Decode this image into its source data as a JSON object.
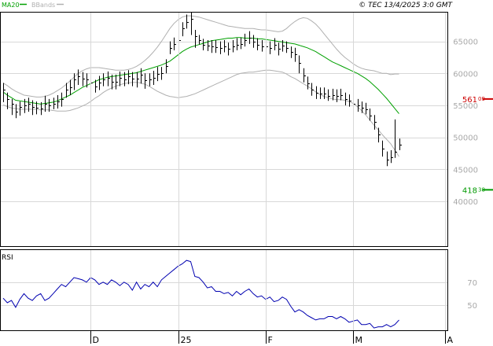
{
  "credit": "© TEC 13/4/2025 3:0 GMT",
  "colors": {
    "ma": "#00a000",
    "bands": "#b0b0b0",
    "rsi": "#0000b0",
    "price": "#000000",
    "resistance": "#cc0000",
    "support": "#009900",
    "grid": "#d8d8d8",
    "axis_text": "#a9a9a9",
    "frame": "#000000"
  },
  "chart_data": [
    {
      "type": "line",
      "panel": "price",
      "legend": [
        "MA20",
        "BBands"
      ],
      "ylim": [
        330,
        695
      ],
      "y_ticks": [
        "65000",
        "60000",
        "55000",
        "50000",
        "45000",
        "40000"
      ],
      "y_tick_values": [
        650,
        600,
        550,
        500,
        450,
        400
      ],
      "x_ticks": [
        "D",
        "25",
        "F",
        "M",
        "A"
      ],
      "x_tick_positions": [
        21,
        42,
        63,
        84,
        106
      ],
      "levels": [
        {
          "name": "resistance",
          "value": 560,
          "label_main": "561",
          "label_small": "09",
          "x_start": 115,
          "x_end": 126
        },
        {
          "name": "support",
          "value": 418,
          "label_main": "418",
          "label_small": "38",
          "x_start": 115,
          "x_end": 126
        }
      ],
      "series": [
        {
          "kind": "close",
          "values": [
            575,
            560,
            552,
            540,
            547,
            550,
            552,
            548,
            546,
            545,
            553,
            550,
            552,
            556,
            560,
            575,
            578,
            590,
            595,
            592,
            590,
            586,
            580,
            586,
            590,
            593,
            587,
            587,
            593,
            591,
            595,
            592,
            592,
            598,
            589,
            590,
            593,
            599,
            600,
            612,
            640,
            646,
            652,
            670,
            680,
            685,
            658,
            652,
            644,
            643,
            642,
            641,
            640,
            642,
            638,
            642,
            645,
            646,
            652,
            656,
            650,
            645,
            642,
            642,
            640,
            645,
            638,
            643,
            640,
            633,
            630,
            616,
            597,
            585,
            575,
            570,
            568,
            568,
            565,
            566,
            565,
            566,
            560,
            557,
            552,
            550,
            546,
            544,
            534,
            524,
            505,
            483,
            465,
            469,
            478,
            488
          ],
          "lows": [
            555,
            544,
            535,
            530,
            534,
            538,
            540,
            535,
            536,
            535,
            540,
            540,
            544,
            545,
            548,
            562,
            566,
            574,
            582,
            580,
            578,
            575,
            570,
            574,
            580,
            580,
            575,
            575,
            580,
            580,
            583,
            580,
            578,
            584,
            576,
            580,
            582,
            588,
            590,
            600,
            630,
            636,
            642,
            658,
            670,
            660,
            640,
            645,
            636,
            635,
            632,
            632,
            630,
            633,
            628,
            633,
            636,
            638,
            642,
            646,
            640,
            636,
            634,
            634,
            630,
            636,
            628,
            634,
            632,
            624,
            618,
            600,
            586,
            575,
            565,
            560,
            560,
            560,
            557,
            558,
            555,
            558,
            550,
            548,
            542,
            540,
            538,
            536,
            526,
            512,
            492,
            470,
            455,
            460,
            468,
            480
          ],
          "highs": [
            585,
            570,
            560,
            552,
            556,
            560,
            562,
            558,
            556,
            555,
            565,
            560,
            562,
            566,
            570,
            585,
            590,
            600,
            606,
            602,
            600,
            596,
            590,
            596,
            600,
            603,
            598,
            598,
            603,
            602,
            605,
            602,
            602,
            608,
            600,
            600,
            604,
            610,
            610,
            622,
            650,
            656,
            664,
            680,
            692,
            695,
            668,
            660,
            654,
            652,
            652,
            652,
            650,
            652,
            648,
            652,
            655,
            656,
            662,
            666,
            660,
            655,
            652,
            652,
            650,
            655,
            648,
            652,
            650,
            642,
            640,
            628,
            608,
            595,
            585,
            580,
            578,
            578,
            575,
            576,
            575,
            576,
            570,
            567,
            562,
            560,
            556,
            554,
            545,
            535,
            515,
            495,
            478,
            480,
            528,
            498
          ]
        },
        {
          "kind": "ma",
          "name": "MA20",
          "values": [
            571,
            566,
            562,
            558,
            557,
            556,
            555,
            554,
            553,
            552,
            553,
            554,
            555,
            557,
            560,
            563,
            566,
            570,
            574,
            578,
            581,
            584,
            587,
            590,
            592,
            594,
            595,
            596,
            597,
            598,
            599,
            600,
            601,
            603,
            605,
            607,
            609,
            611,
            613,
            616,
            619,
            624,
            629,
            634,
            638,
            641,
            643,
            645,
            647,
            649,
            651,
            652,
            653,
            654,
            655,
            655,
            656,
            656,
            655,
            655,
            655,
            654,
            654,
            653,
            652,
            651,
            650,
            649,
            648,
            647,
            646,
            644,
            642,
            640,
            637,
            634,
            630,
            626,
            622,
            618,
            615,
            612,
            609,
            606,
            603,
            600,
            596,
            592,
            587,
            581,
            575,
            568,
            561,
            553,
            545,
            537
          ]
        },
        {
          "kind": "bb_upper",
          "name": "BBands",
          "values": [
            585,
            581,
            576,
            572,
            569,
            566,
            565,
            564,
            563,
            563,
            564,
            566,
            569,
            573,
            577,
            582,
            588,
            594,
            600,
            604,
            607,
            609,
            609,
            609,
            608,
            607,
            606,
            605,
            605,
            605,
            606,
            608,
            611,
            615,
            620,
            626,
            633,
            641,
            650,
            660,
            670,
            678,
            684,
            688,
            690,
            690,
            689,
            688,
            686,
            684,
            682,
            680,
            678,
            676,
            674,
            673,
            672,
            671,
            670,
            670,
            670,
            669,
            668,
            668,
            667,
            666,
            665,
            666,
            670,
            676,
            681,
            685,
            687,
            686,
            682,
            677,
            670,
            662,
            654,
            646,
            638,
            631,
            625,
            620,
            615,
            611,
            608,
            606,
            605,
            604,
            602,
            600,
            600,
            598,
            599,
            599
          ]
        },
        {
          "kind": "bb_lower",
          "name": "BBands",
          "values": [
            551,
            548,
            546,
            545,
            544,
            544,
            544,
            544,
            544,
            543,
            543,
            543,
            542,
            541,
            541,
            541,
            542,
            544,
            546,
            549,
            552,
            556,
            561,
            565,
            570,
            574,
            577,
            580,
            582,
            584,
            585,
            586,
            586,
            585,
            583,
            580,
            576,
            572,
            569,
            566,
            564,
            563,
            562,
            563,
            564,
            566,
            568,
            571,
            574,
            577,
            580,
            583,
            586,
            589,
            592,
            595,
            598,
            600,
            601,
            602,
            602,
            603,
            604,
            605,
            605,
            604,
            603,
            602,
            599,
            595,
            592,
            588,
            584,
            580,
            576,
            571,
            567,
            564,
            562,
            560,
            559,
            559,
            558,
            556,
            553,
            548,
            542,
            535,
            527,
            519,
            512,
            504,
            497,
            490,
            480,
            470
          ]
        }
      ]
    },
    {
      "type": "line",
      "panel": "rsi",
      "title": "RSI",
      "ylim": [
        28,
        98
      ],
      "y_ticks": [
        "70",
        "50"
      ],
      "y_tick_values": [
        70,
        50
      ],
      "series": [
        {
          "name": "RSI",
          "values": [
            56,
            52,
            54,
            48,
            55,
            60,
            56,
            54,
            58,
            60,
            54,
            56,
            60,
            64,
            68,
            66,
            70,
            74,
            73,
            72,
            70,
            74,
            72,
            68,
            70,
            68,
            72,
            70,
            67,
            70,
            68,
            63,
            70,
            64,
            68,
            66,
            70,
            66,
            72,
            75,
            78,
            81,
            84,
            86,
            89,
            88,
            75,
            74,
            70,
            65,
            66,
            62,
            62,
            60,
            61,
            58,
            62,
            59,
            62,
            64,
            60,
            57,
            58,
            55,
            57,
            53,
            54,
            57,
            55,
            49,
            44,
            46,
            44,
            41,
            39,
            37,
            38,
            38,
            40,
            40,
            38,
            40,
            38,
            35,
            36,
            37,
            33,
            33,
            34,
            30,
            31,
            31,
            33,
            31,
            33,
            37
          ]
        }
      ]
    }
  ]
}
